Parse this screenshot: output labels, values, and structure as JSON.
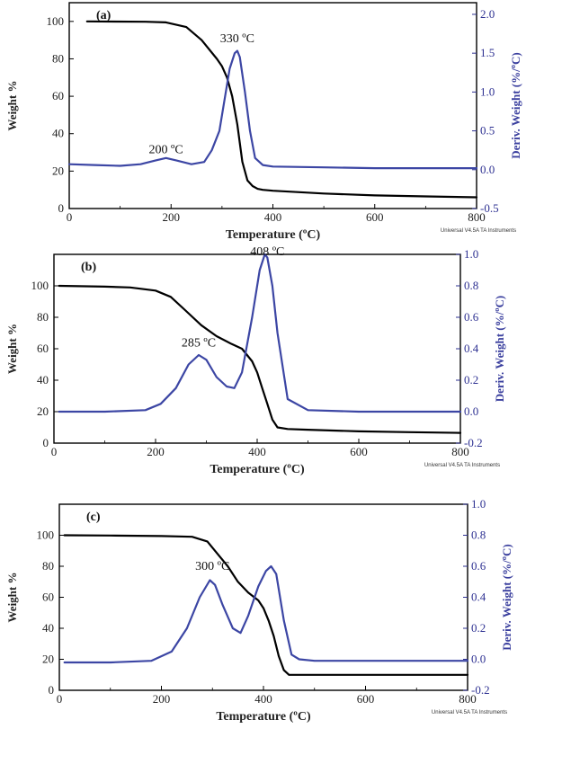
{
  "colors": {
    "weight": "#000000",
    "deriv": "#3c46a4",
    "axis_right": "#2e3192"
  },
  "chart_data": [
    {
      "type": "line",
      "panel_label": "(a)",
      "xlabel": "Temperature (ºC)",
      "ylabel": "Weight %",
      "ylabel_right": "Deriv. Weight (%/ºC)",
      "xlim": [
        0,
        800
      ],
      "ylim": [
        0,
        110
      ],
      "y2lim": [
        -0.5,
        2.15
      ],
      "xticks": [
        "0",
        "200",
        "400",
        "600",
        "800"
      ],
      "yticks": [
        "0",
        "20",
        "40",
        "60",
        "80",
        "100"
      ],
      "y2ticks": [
        "-0.5",
        "0.0",
        "0.5",
        "1.0",
        "1.5",
        "2.0"
      ],
      "credit": "Universal V4.5A TA Instruments",
      "annotations": [
        {
          "text": "200 ºC",
          "x": 190,
          "y2": 0.12
        },
        {
          "text": "330 ºC",
          "x": 330,
          "y2": 1.55
        }
      ],
      "series": [
        {
          "name": "Weight",
          "axis": "left",
          "x": [
            35,
            150,
            190,
            230,
            260,
            290,
            300,
            310,
            320,
            330,
            340,
            350,
            360,
            370,
            380,
            400,
            500,
            600,
            700,
            800
          ],
          "y": [
            100,
            99.8,
            99.5,
            97,
            90,
            80,
            76,
            70,
            60,
            45,
            25,
            15,
            12,
            10.5,
            10,
            9.5,
            8,
            7,
            6.5,
            6
          ]
        },
        {
          "name": "Deriv. Weight",
          "axis": "right",
          "x": [
            0,
            50,
            100,
            140,
            170,
            190,
            210,
            240,
            265,
            280,
            295,
            305,
            315,
            325,
            330,
            335,
            345,
            355,
            365,
            380,
            400,
            500,
            600,
            700,
            800
          ],
          "y": [
            0.07,
            0.06,
            0.05,
            0.07,
            0.12,
            0.15,
            0.12,
            0.07,
            0.1,
            0.25,
            0.5,
            0.9,
            1.3,
            1.5,
            1.53,
            1.45,
            1.0,
            0.5,
            0.15,
            0.06,
            0.04,
            0.03,
            0.02,
            0.02,
            0.02
          ]
        }
      ]
    },
    {
      "type": "line",
      "panel_label": "(b)",
      "xlabel": "Temperature (ºC)",
      "ylabel": "Weight %",
      "ylabel_right": "Deriv. Weight (%/ºC)",
      "xlim": [
        0,
        800
      ],
      "ylim": [
        0,
        120
      ],
      "y2lim": [
        -0.2,
        1.0
      ],
      "xticks": [
        "0",
        "200",
        "400",
        "600",
        "800"
      ],
      "yticks": [
        "0",
        "20",
        "40",
        "60",
        "80",
        "100"
      ],
      "y2ticks": [
        "-0.2",
        "0.0",
        "0.2",
        "0.4",
        "0.6",
        "0.8",
        "1.0"
      ],
      "credit": "Universal V4.5A TA Instruments",
      "annotations": [
        {
          "text": "285 ºC",
          "x": 285,
          "y2": 0.37
        },
        {
          "text": "408 ºC",
          "x": 420,
          "y2": 0.95
        }
      ],
      "series": [
        {
          "name": "Weight",
          "axis": "left",
          "x": [
            10,
            100,
            150,
            200,
            230,
            260,
            290,
            320,
            350,
            370,
            390,
            400,
            410,
            420,
            430,
            440,
            460,
            500,
            600,
            700,
            800
          ],
          "y": [
            100,
            99.5,
            99,
            97,
            93,
            84,
            75,
            68,
            63,
            60,
            52,
            45,
            35,
            25,
            15,
            10,
            9,
            8.5,
            7.5,
            7,
            6.5
          ]
        },
        {
          "name": "Deriv. Weight",
          "axis": "right",
          "x": [
            10,
            100,
            180,
            210,
            240,
            265,
            285,
            300,
            320,
            340,
            355,
            370,
            390,
            405,
            415,
            420,
            430,
            440,
            460,
            500,
            600,
            700,
            800
          ],
          "y": [
            0.0,
            0.0,
            0.01,
            0.05,
            0.15,
            0.3,
            0.36,
            0.33,
            0.22,
            0.16,
            0.15,
            0.25,
            0.6,
            0.9,
            1.0,
            0.98,
            0.8,
            0.5,
            0.08,
            0.01,
            0.0,
            0.0,
            0.0
          ]
        }
      ]
    },
    {
      "type": "line",
      "panel_label": "(c)",
      "xlabel": "Temperature (ºC)",
      "ylabel": "Weight %",
      "ylabel_right": "Deriv. Weight (%/ºC)",
      "xlim": [
        0,
        800
      ],
      "ylim": [
        0,
        120
      ],
      "y2lim": [
        -0.2,
        1.0
      ],
      "xticks": [
        "0",
        "200",
        "400",
        "600",
        "800"
      ],
      "yticks": [
        "0",
        "20",
        "40",
        "60",
        "80",
        "100"
      ],
      "y2ticks": [
        "-0.2",
        "0.0",
        "0.2",
        "0.4",
        "0.6",
        "0.8",
        "1.0"
      ],
      "credit": "Universal V4.5A TA Instruments",
      "annotations": [
        {
          "text": "300 ºC",
          "x": 300,
          "y2": 0.53
        }
      ],
      "series": [
        {
          "name": "Weight",
          "axis": "left",
          "x": [
            10,
            100,
            200,
            260,
            290,
            310,
            330,
            350,
            370,
            390,
            400,
            410,
            420,
            430,
            440,
            450,
            500,
            600,
            700,
            800
          ],
          "y": [
            100,
            99.8,
            99.5,
            99,
            96,
            88,
            80,
            70,
            63,
            58,
            53,
            45,
            35,
            22,
            13,
            10,
            10,
            10,
            10,
            10
          ]
        },
        {
          "name": "Deriv. Weight",
          "axis": "right",
          "x": [
            10,
            100,
            180,
            220,
            250,
            275,
            295,
            305,
            320,
            340,
            355,
            370,
            390,
            405,
            415,
            425,
            440,
            455,
            470,
            500,
            600,
            700,
            800
          ],
          "y": [
            -0.02,
            -0.02,
            -0.01,
            0.05,
            0.2,
            0.4,
            0.51,
            0.48,
            0.35,
            0.2,
            0.17,
            0.28,
            0.47,
            0.57,
            0.6,
            0.55,
            0.25,
            0.03,
            0.0,
            -0.01,
            -0.01,
            -0.01,
            -0.01
          ]
        }
      ]
    }
  ]
}
